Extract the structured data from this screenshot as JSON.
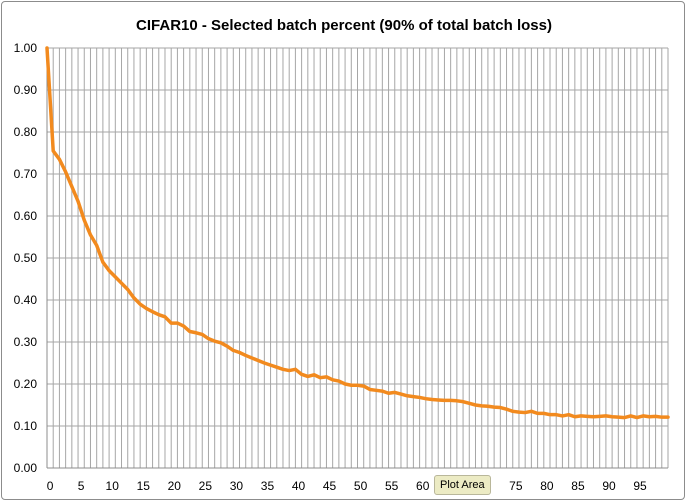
{
  "tooltip": "Plot Area",
  "colors": {
    "line": "#f28a1e",
    "grid": "#a6a6a6",
    "axis": "#8c8c8c"
  },
  "chart_data": {
    "type": "line",
    "title": "CIFAR10 - Selected batch percent (90% of total batch loss)",
    "xlabel": "",
    "ylabel": "",
    "xlim": [
      0,
      100
    ],
    "ylim": [
      0,
      1
    ],
    "grid": true,
    "legend": "none",
    "x_ticks": [
      "0",
      "5",
      "10",
      "15",
      "20",
      "25",
      "30",
      "35",
      "40",
      "45",
      "50",
      "55",
      "60",
      "65",
      "70",
      "75",
      "80",
      "85",
      "90",
      "95"
    ],
    "y_ticks": [
      "0.00",
      "0.10",
      "0.20",
      "0.30",
      "0.40",
      "0.50",
      "0.60",
      "0.70",
      "0.80",
      "0.90",
      "1.00"
    ],
    "series": [
      {
        "values": [
          1.0,
          0.755,
          0.735,
          0.705,
          0.67,
          0.635,
          0.59,
          0.555,
          0.53,
          0.49,
          0.47,
          0.455,
          0.44,
          0.425,
          0.405,
          0.39,
          0.38,
          0.372,
          0.365,
          0.36,
          0.345,
          0.345,
          0.338,
          0.325,
          0.322,
          0.318,
          0.308,
          0.302,
          0.298,
          0.29,
          0.28,
          0.275,
          0.268,
          0.262,
          0.256,
          0.25,
          0.245,
          0.24,
          0.235,
          0.232,
          0.235,
          0.223,
          0.218,
          0.222,
          0.215,
          0.217,
          0.21,
          0.207,
          0.2,
          0.197,
          0.197,
          0.195,
          0.187,
          0.185,
          0.183,
          0.178,
          0.18,
          0.176,
          0.172,
          0.17,
          0.168,
          0.165,
          0.163,
          0.162,
          0.161,
          0.161,
          0.16,
          0.158,
          0.154,
          0.15,
          0.148,
          0.147,
          0.145,
          0.144,
          0.14,
          0.135,
          0.133,
          0.132,
          0.135,
          0.13,
          0.13,
          0.127,
          0.127,
          0.124,
          0.127,
          0.122,
          0.124,
          0.123,
          0.122,
          0.123,
          0.124,
          0.122,
          0.121,
          0.12,
          0.124,
          0.12,
          0.124,
          0.122,
          0.123,
          0.121,
          0.121
        ]
      }
    ]
  }
}
